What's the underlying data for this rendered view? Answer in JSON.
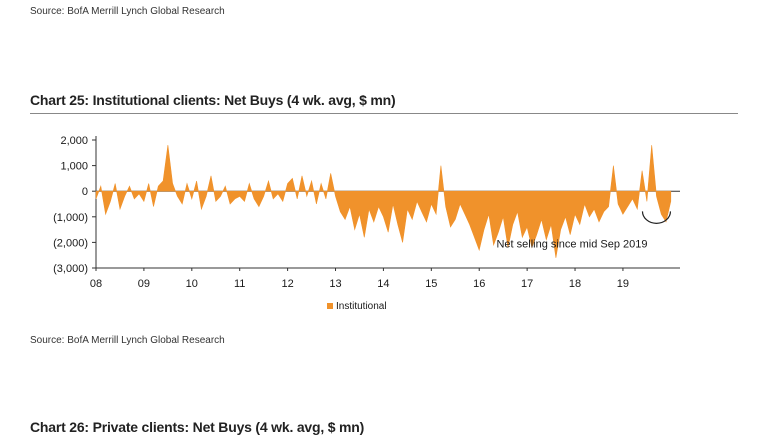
{
  "source_top": "Source: BofA Merrill Lynch Global Research",
  "source_bottom": "Source: BofA Merrill Lynch Global Research",
  "chart_title": "Chart 25: Institutional clients: Net Buys (4 wk. avg, $ mn)",
  "next_chart_title": "Chart 26: Private clients: Net Buys (4 wk. avg, $ mn)",
  "colors": {
    "series": "#f0922b",
    "axis": "#333333",
    "text": "#1a1a1a"
  },
  "chart_data": {
    "type": "area",
    "title": "Chart 25: Institutional clients: Net Buys (4 wk. avg, $ mn)",
    "ylim": [
      -3000,
      2000
    ],
    "yticks": [
      2000,
      1000,
      0,
      -1000,
      -2000,
      -3000
    ],
    "ytick_labels": [
      "2,000",
      "1,000",
      "0",
      "(1,000)",
      "(2,000)",
      "(3,000)"
    ],
    "xlim": [
      2008.0,
      2020.4
    ],
    "xticks": [
      2008,
      2009,
      2010,
      2011,
      2012,
      2013,
      2014,
      2015,
      2016,
      2017,
      2018,
      2019
    ],
    "xtick_labels": [
      "08",
      "09",
      "10",
      "11",
      "12",
      "13",
      "14",
      "15",
      "16",
      "17",
      "18",
      "19"
    ],
    "grid": false,
    "legend": {
      "position": "bottom-center",
      "entries": [
        "Institutional"
      ]
    },
    "annotation": {
      "text": "Net selling since mid Sep 2019",
      "x": 2019.7,
      "y": -1100
    },
    "series": [
      {
        "name": "Institutional",
        "x": [
          2008.0,
          2008.1,
          2008.2,
          2008.3,
          2008.4,
          2008.5,
          2008.6,
          2008.7,
          2008.8,
          2008.9,
          2009.0,
          2009.1,
          2009.2,
          2009.3,
          2009.4,
          2009.5,
          2009.6,
          2009.7,
          2009.8,
          2009.9,
          2010.0,
          2010.1,
          2010.2,
          2010.3,
          2010.4,
          2010.5,
          2010.6,
          2010.7,
          2010.8,
          2010.9,
          2011.0,
          2011.1,
          2011.2,
          2011.3,
          2011.4,
          2011.5,
          2011.6,
          2011.7,
          2011.8,
          2011.9,
          2012.0,
          2012.1,
          2012.2,
          2012.3,
          2012.4,
          2012.5,
          2012.6,
          2012.7,
          2012.8,
          2012.9,
          2013.0,
          2013.1,
          2013.2,
          2013.3,
          2013.4,
          2013.5,
          2013.6,
          2013.7,
          2013.8,
          2013.9,
          2014.0,
          2014.1,
          2014.2,
          2014.3,
          2014.4,
          2014.5,
          2014.6,
          2014.7,
          2014.8,
          2014.9,
          2015.0,
          2015.1,
          2015.2,
          2015.3,
          2015.4,
          2015.5,
          2015.6,
          2015.7,
          2015.8,
          2015.9,
          2016.0,
          2016.1,
          2016.2,
          2016.3,
          2016.4,
          2016.5,
          2016.6,
          2016.7,
          2016.8,
          2016.9,
          2017.0,
          2017.1,
          2017.2,
          2017.3,
          2017.4,
          2017.5,
          2017.6,
          2017.7,
          2017.8,
          2017.9,
          2018.0,
          2018.1,
          2018.2,
          2018.3,
          2018.4,
          2018.5,
          2018.6,
          2018.7,
          2018.8,
          2018.9,
          2019.0,
          2019.1,
          2019.2,
          2019.3,
          2019.4,
          2019.5,
          2019.6,
          2019.7,
          2019.8,
          2019.9,
          2020.0
        ],
        "values": [
          -300,
          200,
          -900,
          -400,
          300,
          -700,
          -200,
          200,
          -300,
          -100,
          -400,
          300,
          -600,
          200,
          400,
          1800,
          300,
          -200,
          -500,
          300,
          -300,
          400,
          -700,
          -200,
          600,
          -400,
          -200,
          200,
          -500,
          -300,
          -200,
          -400,
          300,
          -300,
          -600,
          -200,
          400,
          -300,
          -100,
          -400,
          300,
          500,
          -300,
          600,
          -200,
          400,
          -500,
          300,
          -300,
          700,
          -200,
          -800,
          -1100,
          -600,
          -1500,
          -900,
          -1800,
          -700,
          -1200,
          -600,
          -1000,
          -1600,
          -500,
          -1300,
          -2000,
          -700,
          -1100,
          -400,
          -800,
          -1200,
          -500,
          -900,
          1000,
          -600,
          -1400,
          -1100,
          -500,
          -900,
          -1300,
          -1800,
          -2300,
          -1500,
          -900,
          -2100,
          -1600,
          -1000,
          -2200,
          -1300,
          -800,
          -1800,
          -1400,
          -2200,
          -1700,
          -1100,
          -1900,
          -1300,
          -2600,
          -1500,
          -1000,
          -1700,
          -900,
          -1300,
          -500,
          -1000,
          -700,
          -1200,
          -800,
          -600,
          1000,
          -500,
          -900,
          -600,
          -300,
          -700,
          800,
          -400,
          1800,
          -200,
          -900,
          -1200,
          -400
        ]
      }
    ]
  }
}
